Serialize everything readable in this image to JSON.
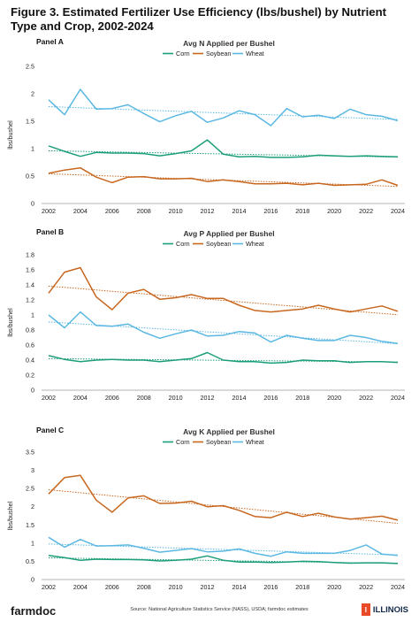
{
  "figure_title": "Figure 3. Estimated Fertilizer Use Efficiency (lbs/bushel) by Nutrient Type and Crop, 2002-2024",
  "footer": {
    "brand": "farmdoc",
    "source": "Source: National Agriculture Statistics Service (NASS), USDA; farmdoc estimates",
    "university": "ILLINOIS",
    "university_mark": "I"
  },
  "colors": {
    "corn": "#1d9e7a",
    "soybean": "#c8671f",
    "wheat": "#5bb8e3"
  },
  "chart_data": [
    {
      "panel": "Panel A",
      "type": "line",
      "title": "Avg N Applied  per Bushel",
      "ylabel": "lbs/bushel",
      "ylim": [
        0,
        2.5
      ],
      "yticks": [
        "0",
        "0.5",
        "1",
        "1.5",
        "2",
        "2.5"
      ],
      "x": [
        2002,
        2003,
        2004,
        2005,
        2006,
        2007,
        2008,
        2009,
        2010,
        2011,
        2012,
        2013,
        2014,
        2015,
        2016,
        2017,
        2018,
        2019,
        2020,
        2021,
        2022,
        2023,
        2024
      ],
      "xticks": [
        2002,
        2004,
        2006,
        2008,
        2010,
        2012,
        2014,
        2016,
        2018,
        2020,
        2022,
        2024
      ],
      "trendlines": true,
      "legend": "top",
      "series": [
        {
          "name": "Corn",
          "color": "#1d9e7a",
          "values": [
            1.05,
            0.95,
            0.86,
            0.93,
            0.92,
            0.92,
            0.91,
            0.87,
            0.91,
            0.96,
            1.16,
            0.9,
            0.85,
            0.86,
            0.84,
            0.84,
            0.85,
            0.88,
            0.87,
            0.86,
            0.87,
            0.86,
            0.85
          ]
        },
        {
          "name": "Soybean",
          "color": "#c8671f",
          "values": [
            0.55,
            0.61,
            0.65,
            0.48,
            0.38,
            0.48,
            0.49,
            0.45,
            0.45,
            0.46,
            0.4,
            0.43,
            0.4,
            0.36,
            0.36,
            0.37,
            0.34,
            0.37,
            0.33,
            0.34,
            0.35,
            0.43,
            0.33
          ]
        },
        {
          "name": "Wheat",
          "color": "#5bb8e3",
          "values": [
            1.89,
            1.62,
            2.08,
            1.72,
            1.73,
            1.8,
            1.64,
            1.49,
            1.6,
            1.68,
            1.48,
            1.56,
            1.69,
            1.62,
            1.42,
            1.73,
            1.58,
            1.61,
            1.55,
            1.72,
            1.62,
            1.59,
            1.51
          ]
        }
      ]
    },
    {
      "panel": "Panel B",
      "type": "line",
      "title": "Avg P Applied  per Bushel",
      "ylabel": "lbs/bushel",
      "ylim": [
        0,
        1.8
      ],
      "yticks": [
        "0",
        "0.2",
        "0.4",
        "0.6",
        "0.8",
        "1",
        "1.2",
        "1.4",
        "1.6",
        "1.8"
      ],
      "x": [
        2002,
        2003,
        2004,
        2005,
        2006,
        2007,
        2008,
        2009,
        2010,
        2011,
        2012,
        2013,
        2014,
        2015,
        2016,
        2017,
        2018,
        2019,
        2020,
        2021,
        2022,
        2023,
        2024
      ],
      "xticks": [
        2002,
        2004,
        2006,
        2008,
        2010,
        2012,
        2014,
        2016,
        2018,
        2020,
        2022,
        2024
      ],
      "trendlines": true,
      "legend": "top",
      "series": [
        {
          "name": "Corn",
          "color": "#1d9e7a",
          "values": [
            0.46,
            0.41,
            0.38,
            0.4,
            0.41,
            0.4,
            0.4,
            0.38,
            0.4,
            0.42,
            0.5,
            0.4,
            0.38,
            0.38,
            0.36,
            0.37,
            0.4,
            0.39,
            0.39,
            0.37,
            0.38,
            0.38,
            0.37
          ]
        },
        {
          "name": "Soybean",
          "color": "#c8671f",
          "values": [
            1.29,
            1.57,
            1.63,
            1.24,
            1.07,
            1.29,
            1.34,
            1.21,
            1.23,
            1.27,
            1.22,
            1.22,
            1.13,
            1.06,
            1.04,
            1.06,
            1.08,
            1.13,
            1.08,
            1.04,
            1.08,
            1.12,
            1.05
          ]
        },
        {
          "name": "Wheat",
          "color": "#5bb8e3",
          "values": [
            1.0,
            0.83,
            1.04,
            0.86,
            0.85,
            0.88,
            0.77,
            0.69,
            0.75,
            0.8,
            0.72,
            0.73,
            0.78,
            0.76,
            0.64,
            0.73,
            0.69,
            0.66,
            0.66,
            0.73,
            0.7,
            0.65,
            0.62
          ]
        }
      ]
    },
    {
      "panel": "Panel C",
      "type": "line",
      "title": "Avg K Applied  per Bushel",
      "ylabel": "lbs/bushel",
      "ylim": [
        0,
        3.5
      ],
      "yticks": [
        "0",
        "0.5",
        "1",
        "1.5",
        "2",
        "2.5",
        "3",
        "3.5"
      ],
      "x": [
        2002,
        2003,
        2004,
        2005,
        2006,
        2007,
        2008,
        2009,
        2010,
        2011,
        2012,
        2013,
        2014,
        2015,
        2016,
        2017,
        2018,
        2019,
        2020,
        2021,
        2022,
        2023,
        2024
      ],
      "xticks": [
        2002,
        2004,
        2006,
        2008,
        2010,
        2012,
        2014,
        2016,
        2018,
        2020,
        2022,
        2024
      ],
      "trendlines": true,
      "legend": "top",
      "series": [
        {
          "name": "Corn",
          "color": "#1d9e7a",
          "values": [
            0.66,
            0.6,
            0.53,
            0.56,
            0.55,
            0.55,
            0.54,
            0.51,
            0.53,
            0.56,
            0.65,
            0.53,
            0.48,
            0.48,
            0.47,
            0.48,
            0.5,
            0.49,
            0.47,
            0.45,
            0.46,
            0.46,
            0.44
          ]
        },
        {
          "name": "Soybean",
          "color": "#c8671f",
          "values": [
            2.35,
            2.8,
            2.86,
            2.18,
            1.85,
            2.24,
            2.3,
            2.09,
            2.1,
            2.15,
            2.0,
            2.03,
            1.9,
            1.73,
            1.7,
            1.85,
            1.73,
            1.82,
            1.72,
            1.66,
            1.7,
            1.74,
            1.63
          ]
        },
        {
          "name": "Wheat",
          "color": "#5bb8e3",
          "values": [
            1.16,
            0.89,
            1.1,
            0.92,
            0.93,
            0.95,
            0.86,
            0.75,
            0.8,
            0.85,
            0.76,
            0.78,
            0.84,
            0.72,
            0.64,
            0.76,
            0.72,
            0.72,
            0.72,
            0.8,
            0.95,
            0.7,
            0.66
          ]
        }
      ]
    }
  ]
}
